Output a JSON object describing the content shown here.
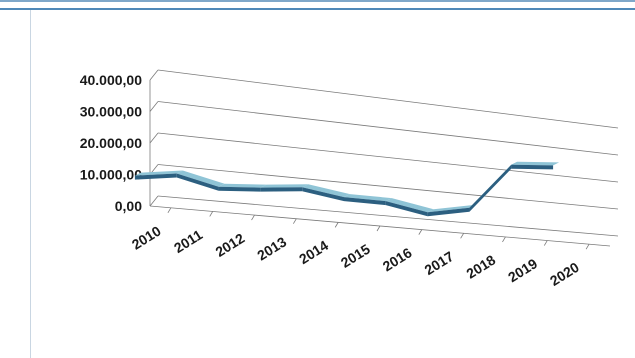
{
  "chart_data": {
    "type": "line",
    "style": "3d-ribbon",
    "categories": [
      "2010",
      "2011",
      "2012",
      "2013",
      "2014",
      "2015",
      "2016",
      "2017",
      "2018",
      "2019",
      "2020"
    ],
    "series": [
      {
        "values": [
          9000,
          11000,
          8000,
          9000,
          10500,
          8500,
          8500,
          6000,
          9000,
          26000,
          27500
        ]
      }
    ],
    "y_ticks": [
      "40.000,00",
      "30.000,00",
      "20.000,00",
      "10.000,00",
      "0,00"
    ],
    "ylim": [
      0,
      40000
    ],
    "grid": true,
    "legend": "none",
    "colors": {
      "ribbon_top": "#8fc4d6",
      "ribbon_front": "#2c5f80",
      "grid": "#7a7a7a",
      "frame": "#4f88b8"
    }
  }
}
